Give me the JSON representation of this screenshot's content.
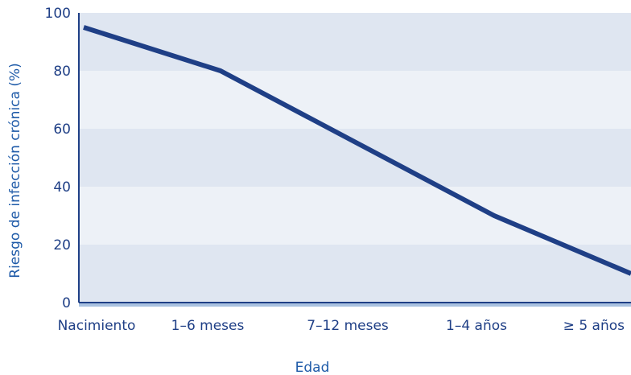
{
  "chart_data": {
    "type": "line",
    "title": "",
    "xlabel": "Edad",
    "ylabel": "Riesgo de infección crónica (%)",
    "categories": [
      "Nacimiento",
      "1–6 meses",
      "7–12 meses",
      "1–4 años",
      "≥ 5 años"
    ],
    "y_ticks": [
      "0",
      "20",
      "40",
      "60",
      "80",
      "100"
    ],
    "ylim": [
      0,
      100
    ],
    "grid": "alternating horizontal bands",
    "legend": "none",
    "series": [
      {
        "x": [
          0,
          1,
          2,
          3,
          4
        ],
        "values": [
          95,
          80,
          55,
          30,
          10
        ]
      }
    ],
    "colors": {
      "line": "#1f3f86",
      "text": "#1e5aa8",
      "band_dark": "#dfe6f1",
      "band_light": "#edf1f7",
      "axis": "#1f3f86",
      "baseline": "#a9c1e0"
    }
  }
}
